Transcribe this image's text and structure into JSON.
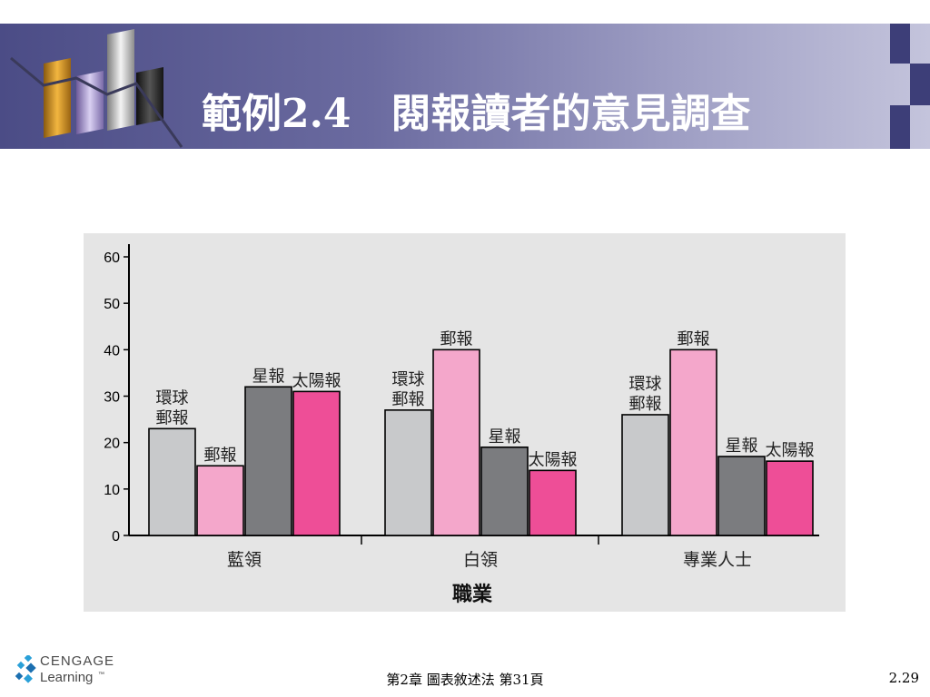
{
  "slide": {
    "title": "範例2.4　閱報讀者的意見調查",
    "footer_center": "第2章  圖表敘述法  第31頁",
    "page_number": "2.29",
    "logo_line1": "CENGAGE",
    "logo_line2": "Learning",
    "logo_tm": "™"
  },
  "colors": {
    "banner_dark": "#4b4c86",
    "panel_bg": "#e5e5e5",
    "series": [
      "#c8c9cb",
      "#f4a7cb",
      "#7b7c7f",
      "#ee4e97"
    ]
  },
  "chart_data": {
    "type": "bar",
    "xlabel": "職業",
    "ylabel": "",
    "ylim": [
      0,
      60
    ],
    "yticks": [
      0,
      10,
      20,
      30,
      40,
      50,
      60
    ],
    "categories": [
      "藍領",
      "白領",
      "專業人士"
    ],
    "series": [
      {
        "name": "環球郵報",
        "values": [
          23,
          27,
          26
        ]
      },
      {
        "name": "郵報",
        "values": [
          15,
          40,
          40
        ]
      },
      {
        "name": "星報",
        "values": [
          32,
          19,
          17
        ]
      },
      {
        "name": "太陽報",
        "values": [
          31,
          14,
          16
        ]
      }
    ],
    "bar_labels": [
      [
        [
          "環球",
          "郵報"
        ],
        [
          "郵報"
        ],
        [
          "星報"
        ],
        [
          "太陽報"
        ]
      ],
      [
        [
          "環球",
          "郵報"
        ],
        [
          "郵報"
        ],
        [
          "星報"
        ],
        [
          "太陽報"
        ]
      ],
      [
        [
          "環球",
          "郵報"
        ],
        [
          "郵報"
        ],
        [
          "星報"
        ],
        [
          "太陽報"
        ]
      ]
    ],
    "grid": false,
    "legend": "none"
  }
}
